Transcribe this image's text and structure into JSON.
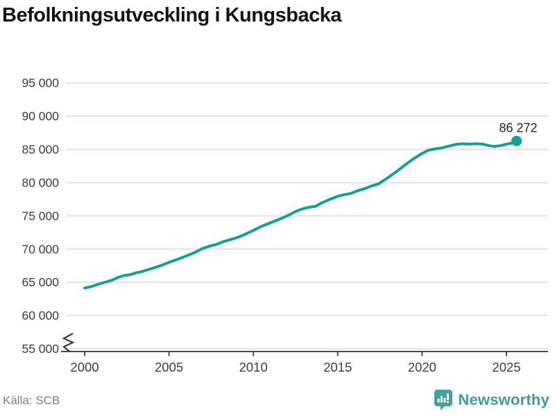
{
  "title": "Befolkningsutveckling i Kungsbacka",
  "source": "Källa: SCB",
  "branding": {
    "name": "Newsworthy",
    "icon": "bar-chart-speech-bubble-icon",
    "color": "#45a29a"
  },
  "chart_data": {
    "type": "line",
    "title": "Befolkningsutveckling i Kungsbacka",
    "xlabel": "",
    "ylabel": "",
    "grid": true,
    "axis_break_at_bottom": true,
    "line_color": "#0fa191",
    "grid_color": "#e3e3e3",
    "axis_color": "#4a4a4a",
    "tick_label_color": "#3c3c3c",
    "end_label": "86 272",
    "end_value": 86272,
    "x_ticks": [
      2000,
      2005,
      2010,
      2015,
      2020,
      2025
    ],
    "x_tick_labels": [
      "2000",
      "2005",
      "2010",
      "2015",
      "2020",
      "2025"
    ],
    "y_ticks": [
      55000,
      60000,
      65000,
      70000,
      75000,
      80000,
      85000,
      90000,
      95000
    ],
    "y_tick_labels": [
      "55 000",
      "60 000",
      "65 000",
      "70 000",
      "75 000",
      "80 000",
      "85 000",
      "90 000",
      "95 000"
    ],
    "xlim": [
      1998.9,
      2027.5
    ],
    "ylim_displayed": [
      55000,
      95000
    ],
    "series": [
      {
        "name": "Folkmängd Kungsbacka",
        "points": [
          [
            2000.0,
            64150
          ],
          [
            2000.4,
            64350
          ],
          [
            2000.8,
            64700
          ],
          [
            2001.2,
            65000
          ],
          [
            2001.6,
            65300
          ],
          [
            2002.0,
            65750
          ],
          [
            2002.3,
            66000
          ],
          [
            2002.7,
            66150
          ],
          [
            2003.0,
            66400
          ],
          [
            2003.5,
            66700
          ],
          [
            2004.0,
            67100
          ],
          [
            2004.5,
            67500
          ],
          [
            2005.0,
            68000
          ],
          [
            2005.5,
            68450
          ],
          [
            2006.0,
            68950
          ],
          [
            2006.5,
            69450
          ],
          [
            2007.0,
            70100
          ],
          [
            2007.4,
            70450
          ],
          [
            2007.8,
            70700
          ],
          [
            2008.2,
            71100
          ],
          [
            2008.6,
            71400
          ],
          [
            2009.0,
            71700
          ],
          [
            2009.4,
            72100
          ],
          [
            2010.0,
            72800
          ],
          [
            2010.5,
            73450
          ],
          [
            2011.0,
            73950
          ],
          [
            2011.5,
            74450
          ],
          [
            2012.0,
            75000
          ],
          [
            2012.5,
            75650
          ],
          [
            2012.9,
            76050
          ],
          [
            2013.3,
            76300
          ],
          [
            2013.7,
            76450
          ],
          [
            2014.0,
            76900
          ],
          [
            2014.5,
            77450
          ],
          [
            2015.0,
            77950
          ],
          [
            2015.4,
            78200
          ],
          [
            2015.8,
            78400
          ],
          [
            2016.2,
            78800
          ],
          [
            2016.6,
            79100
          ],
          [
            2017.0,
            79500
          ],
          [
            2017.4,
            79800
          ],
          [
            2018.0,
            80800
          ],
          [
            2018.5,
            81700
          ],
          [
            2019.0,
            82700
          ],
          [
            2019.5,
            83600
          ],
          [
            2020.0,
            84400
          ],
          [
            2020.4,
            84900
          ],
          [
            2020.8,
            85100
          ],
          [
            2021.2,
            85250
          ],
          [
            2021.6,
            85500
          ],
          [
            2022.0,
            85750
          ],
          [
            2022.4,
            85850
          ],
          [
            2022.8,
            85800
          ],
          [
            2023.2,
            85850
          ],
          [
            2023.6,
            85800
          ],
          [
            2024.0,
            85550
          ],
          [
            2024.3,
            85450
          ],
          [
            2024.7,
            85600
          ],
          [
            2025.0,
            85800
          ],
          [
            2025.3,
            85950
          ],
          [
            2025.6,
            86272
          ]
        ]
      }
    ]
  }
}
